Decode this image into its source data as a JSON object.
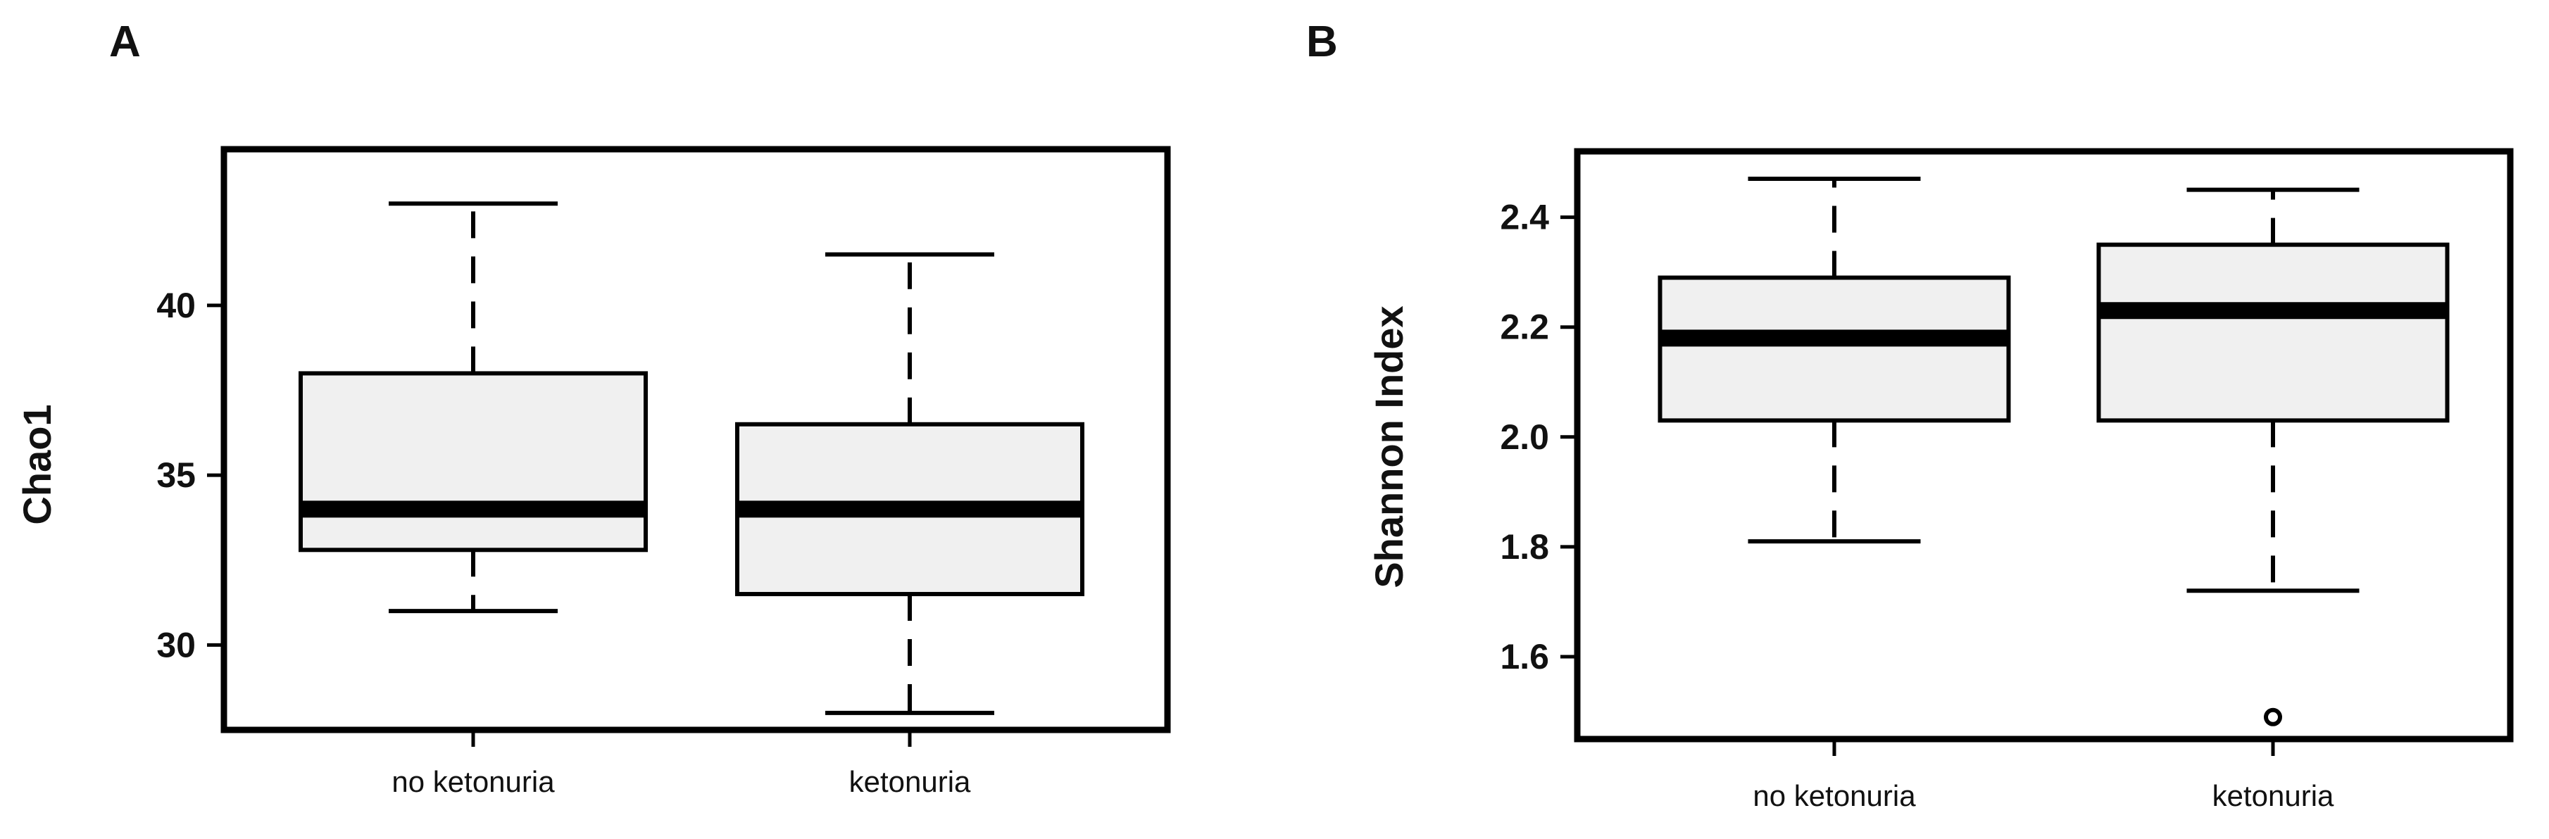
{
  "chart_data": [
    {
      "type": "boxplot",
      "panel_label": "A",
      "ylabel": "Chao1",
      "xlabel": "",
      "categories": [
        "no ketonuria",
        "ketonuria"
      ],
      "yticks": [
        30,
        35,
        40
      ],
      "ylim": [
        27.5,
        44.6
      ],
      "boxes": [
        {
          "category": "no ketonuria",
          "whisker_low": 31.0,
          "q1": 32.8,
          "median": 34.0,
          "q3": 38.0,
          "whisker_high": 43.0,
          "outliers": []
        },
        {
          "category": "ketonuria",
          "whisker_low": 28.0,
          "q1": 31.5,
          "median": 34.0,
          "q3": 36.5,
          "whisker_high": 41.5,
          "outliers": []
        }
      ],
      "colors": {
        "box_fill": "#f0f0f0",
        "stroke": "#000000"
      }
    },
    {
      "type": "boxplot",
      "panel_label": "B",
      "ylabel": "Shannon Index",
      "xlabel": "",
      "categories": [
        "no ketonuria",
        "ketonuria"
      ],
      "yticks": [
        1.6,
        1.8,
        2.0,
        2.2,
        2.4
      ],
      "ylim": [
        1.45,
        2.52
      ],
      "boxes": [
        {
          "category": "no ketonuria",
          "whisker_low": 1.81,
          "q1": 2.03,
          "median": 2.18,
          "q3": 2.29,
          "whisker_high": 2.47,
          "outliers": []
        },
        {
          "category": "ketonuria",
          "whisker_low": 1.72,
          "q1": 2.03,
          "median": 2.23,
          "q3": 2.35,
          "whisker_high": 2.45,
          "outliers": [
            1.49
          ]
        }
      ],
      "colors": {
        "box_fill": "#f0f0f0",
        "stroke": "#000000"
      }
    }
  ]
}
